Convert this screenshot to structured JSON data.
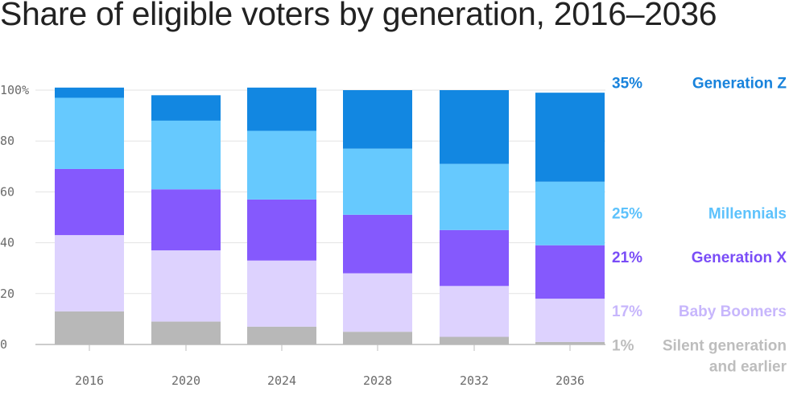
{
  "chart_data": {
    "type": "bar",
    "stacked": true,
    "title": "Share of eligible voters by generation, 2016–2036",
    "xlabel": "",
    "ylabel": "",
    "ylim": [
      0,
      100
    ],
    "y_ticks": [
      {
        "value": 0,
        "label": "0"
      },
      {
        "value": 20,
        "label": "20"
      },
      {
        "value": 40,
        "label": "40"
      },
      {
        "value": 60,
        "label": "60"
      },
      {
        "value": 80,
        "label": "80"
      },
      {
        "value": 100,
        "label": "100%"
      }
    ],
    "grid": true,
    "legend_position": "right",
    "categories": [
      "2016",
      "2020",
      "2024",
      "2028",
      "2032",
      "2036"
    ],
    "series": [
      {
        "name": "Silent generation and earlier",
        "name_lines": [
          "Silent generation",
          "and earlier"
        ],
        "color": "#b8b8b8",
        "label_color": "#bdbdbd",
        "final_label": "1%",
        "values": [
          13,
          9,
          7,
          5,
          3,
          1
        ]
      },
      {
        "name": "Baby Boomers",
        "name_lines": [
          "Baby Boomers"
        ],
        "color": "#ddd2fe",
        "label_color": "#c7b6fc",
        "final_label": "17%",
        "values": [
          30,
          28,
          26,
          23,
          20,
          17
        ]
      },
      {
        "name": "Generation X",
        "name_lines": [
          "Generation X"
        ],
        "color": "#8559fd",
        "label_color": "#7a4df7",
        "final_label": "21%",
        "values": [
          26,
          24,
          24,
          23,
          22,
          21
        ]
      },
      {
        "name": "Millennials",
        "name_lines": [
          "Millennials"
        ],
        "color": "#66c9fe",
        "label_color": "#5dc2fc",
        "final_label": "25%",
        "values": [
          28,
          27,
          27,
          26,
          26,
          25
        ]
      },
      {
        "name": "Generation Z",
        "name_lines": [
          "Generation Z"
        ],
        "color": "#1287e1",
        "label_color": "#1883dc",
        "final_label": "35%",
        "values": [
          4,
          10,
          17,
          23,
          29,
          35
        ]
      }
    ]
  }
}
